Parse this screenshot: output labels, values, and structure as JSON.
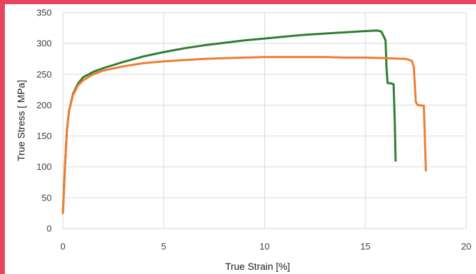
{
  "chart_data": {
    "type": "line",
    "xlabel": "True Strain [%]",
    "ylabel": "True Stress [ MPa]",
    "xlim": [
      0,
      20
    ],
    "ylim": [
      0,
      350
    ],
    "x_ticks": [
      0,
      5,
      10,
      15,
      20
    ],
    "y_ticks": [
      0,
      50,
      100,
      150,
      200,
      250,
      300,
      350
    ],
    "grid": true,
    "series": [
      {
        "color": "#2e7d32",
        "points": [
          [
            0,
            25
          ],
          [
            0.05,
            60
          ],
          [
            0.1,
            100
          ],
          [
            0.2,
            160
          ],
          [
            0.3,
            190
          ],
          [
            0.5,
            218
          ],
          [
            0.75,
            235
          ],
          [
            1,
            245
          ],
          [
            1.5,
            254
          ],
          [
            2,
            260
          ],
          [
            3,
            270
          ],
          [
            4,
            279
          ],
          [
            5,
            286
          ],
          [
            6,
            292
          ],
          [
            7,
            297
          ],
          [
            8,
            301
          ],
          [
            9,
            305
          ],
          [
            10,
            308
          ],
          [
            11,
            311
          ],
          [
            12,
            314
          ],
          [
            13,
            316
          ],
          [
            14,
            318
          ],
          [
            15,
            320
          ],
          [
            15.6,
            321
          ],
          [
            15.8,
            319
          ],
          [
            16,
            305
          ],
          [
            16.05,
            260
          ],
          [
            16.1,
            236
          ],
          [
            16.3,
            235
          ],
          [
            16.4,
            234
          ],
          [
            16.45,
            180
          ],
          [
            16.5,
            110
          ]
        ]
      },
      {
        "color": "#ed7d31",
        "points": [
          [
            0,
            25
          ],
          [
            0.05,
            60
          ],
          [
            0.1,
            100
          ],
          [
            0.2,
            160
          ],
          [
            0.3,
            190
          ],
          [
            0.5,
            216
          ],
          [
            0.75,
            232
          ],
          [
            1,
            240
          ],
          [
            1.5,
            250
          ],
          [
            2,
            256
          ],
          [
            3,
            263
          ],
          [
            4,
            268
          ],
          [
            5,
            271
          ],
          [
            6,
            273
          ],
          [
            7,
            275
          ],
          [
            8,
            276
          ],
          [
            9,
            277
          ],
          [
            10,
            278
          ],
          [
            11,
            278
          ],
          [
            12,
            278
          ],
          [
            13,
            278
          ],
          [
            14,
            277
          ],
          [
            15,
            277
          ],
          [
            16,
            276
          ],
          [
            17,
            275
          ],
          [
            17.3,
            272
          ],
          [
            17.4,
            262
          ],
          [
            17.5,
            205
          ],
          [
            17.6,
            200
          ],
          [
            17.9,
            199
          ],
          [
            18,
            94
          ]
        ]
      }
    ]
  }
}
